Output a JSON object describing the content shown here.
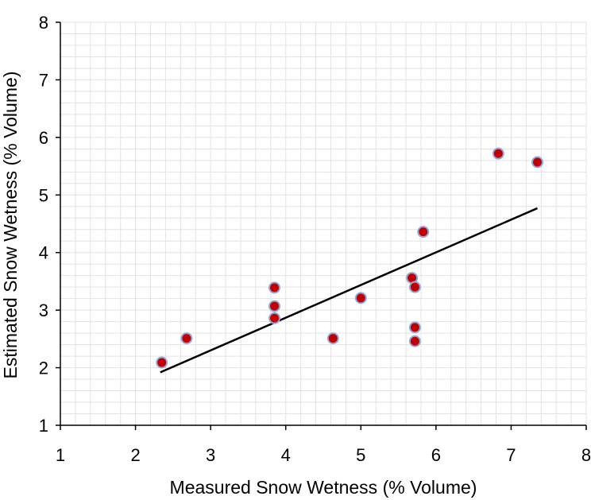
{
  "chart_data": {
    "type": "scatter",
    "xlabel": "Measured Snow Wetness (% Volume)",
    "ylabel": "Estimated Snow Wetness (% Volume)",
    "xlim": [
      1,
      8
    ],
    "ylim": [
      1,
      8
    ],
    "xticks": [
      "1",
      "2",
      "3",
      "4",
      "5",
      "6",
      "7",
      "8"
    ],
    "yticks": [
      "1",
      "2",
      "3",
      "4",
      "5",
      "6",
      "7",
      "8"
    ],
    "grid": true,
    "minor_grid_per_major": 5,
    "points": [
      {
        "x": 2.35,
        "y": 2.09
      },
      {
        "x": 2.68,
        "y": 2.51
      },
      {
        "x": 3.85,
        "y": 3.39
      },
      {
        "x": 3.85,
        "y": 3.07
      },
      {
        "x": 3.85,
        "y": 2.86
      },
      {
        "x": 4.63,
        "y": 2.51
      },
      {
        "x": 5.0,
        "y": 3.21
      },
      {
        "x": 5.68,
        "y": 3.56
      },
      {
        "x": 5.72,
        "y": 3.4
      },
      {
        "x": 5.72,
        "y": 2.7
      },
      {
        "x": 5.72,
        "y": 2.46
      },
      {
        "x": 5.83,
        "y": 4.36
      },
      {
        "x": 6.83,
        "y": 5.72
      },
      {
        "x": 7.35,
        "y": 5.57
      }
    ],
    "trendline": {
      "x": [
        2.33,
        7.35
      ],
      "y": [
        1.92,
        4.77
      ]
    },
    "colors": {
      "marker_fill": "#c00000",
      "marker_edge": "#8faadc",
      "trendline": "#000000",
      "axis": "#000000",
      "grid": "#e3e3e3"
    }
  }
}
